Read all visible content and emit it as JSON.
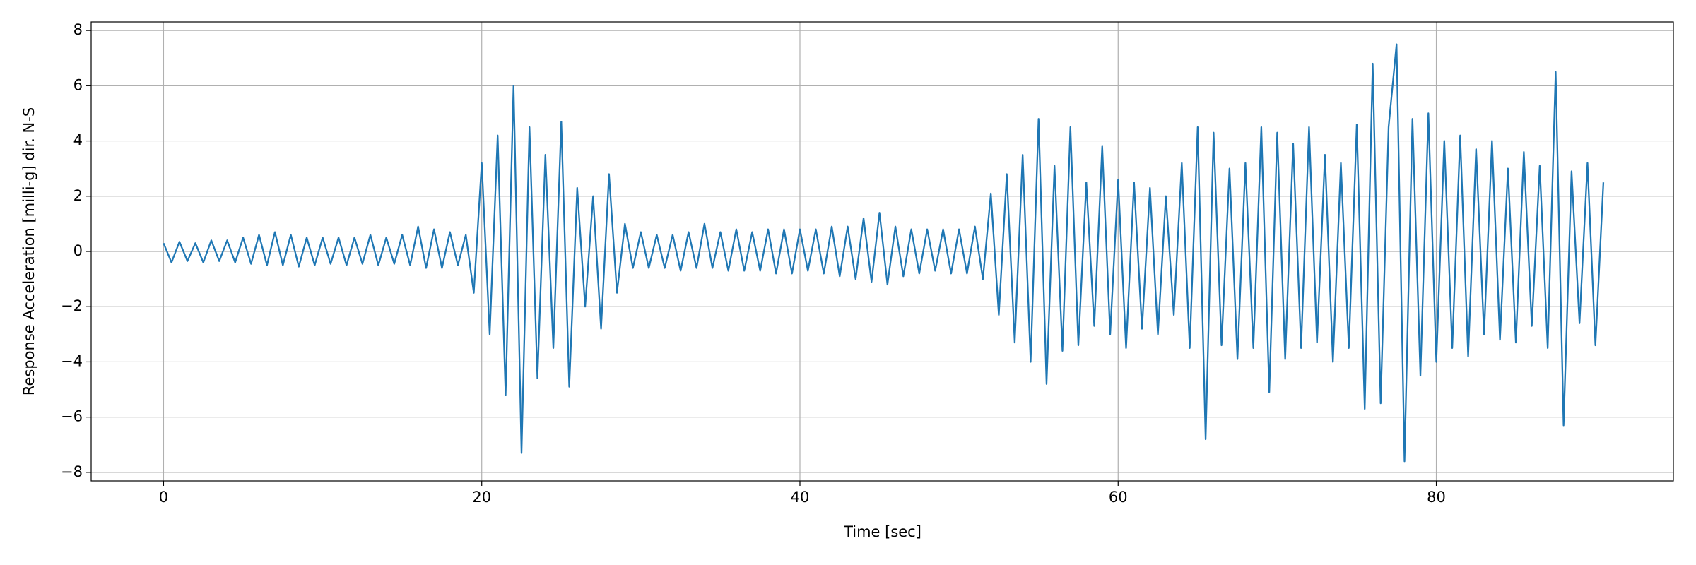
{
  "chart_data": {
    "type": "line",
    "xlabel": "Time [sec]",
    "ylabel": "Response Acceleration [milli-g] dir. N-S",
    "xlim": [
      -4.55,
      94.9
    ],
    "ylim": [
      -8.31,
      8.31
    ],
    "xticks": [
      0,
      20,
      40,
      60,
      80
    ],
    "yticks": [
      {
        "value": -8,
        "label": "−8"
      },
      {
        "value": -6,
        "label": "−6"
      },
      {
        "value": -4,
        "label": "−4"
      },
      {
        "value": -2,
        "label": "−2"
      },
      0,
      2,
      4,
      6,
      8
    ],
    "grid": true,
    "x": [
      0,
      0.5,
      1,
      1.5,
      2,
      2.5,
      3,
      3.5,
      4,
      4.5,
      5,
      5.5,
      6,
      6.5,
      7,
      7.5,
      8,
      8.5,
      9,
      9.5,
      10,
      10.5,
      11,
      11.5,
      12,
      12.5,
      13,
      13.5,
      14,
      14.5,
      15,
      15.5,
      16,
      16.5,
      17,
      17.5,
      18,
      18.5,
      19,
      19.5,
      20,
      20.5,
      21,
      21.5,
      22,
      22.5,
      23,
      23.5,
      24,
      24.5,
      25,
      25.5,
      26,
      26.5,
      27,
      27.5,
      28,
      28.5,
      29,
      29.5,
      30,
      30.5,
      31,
      31.5,
      32,
      32.5,
      33,
      33.5,
      34,
      34.5,
      35,
      35.5,
      36,
      36.5,
      37,
      37.5,
      38,
      38.5,
      39,
      39.5,
      40,
      40.5,
      41,
      41.5,
      42,
      42.5,
      43,
      43.5,
      44,
      44.5,
      45,
      45.5,
      46,
      46.5,
      47,
      47.5,
      48,
      48.5,
      49,
      49.5,
      50,
      50.5,
      51,
      51.5,
      52,
      52.5,
      53,
      53.5,
      54,
      54.5,
      55,
      55.5,
      56,
      56.5,
      57,
      57.5,
      58,
      58.5,
      59,
      59.5,
      60,
      60.5,
      61,
      61.5,
      62,
      62.5,
      63,
      63.5,
      64,
      64.5,
      65,
      65.5,
      66,
      66.5,
      67,
      67.5,
      68,
      68.5,
      69,
      69.5,
      70,
      70.5,
      71,
      71.5,
      72,
      72.5,
      73,
      73.5,
      74,
      74.5,
      75,
      75.5,
      76,
      76.5,
      77,
      77.5,
      78,
      78.5,
      79,
      79.5,
      80,
      80.5,
      81,
      81.5,
      82,
      82.5,
      83,
      83.5,
      84,
      84.5,
      85,
      85.5,
      86,
      86.5,
      87,
      87.5,
      88,
      88.5,
      89,
      89.5,
      90,
      90.5
    ],
    "series": [
      {
        "color": "#1f77b4",
        "values": [
          0.3,
          -0.4,
          0.35,
          -0.35,
          0.3,
          -0.4,
          0.4,
          -0.35,
          0.4,
          -0.4,
          0.5,
          -0.45,
          0.6,
          -0.5,
          0.7,
          -0.5,
          0.6,
          -0.55,
          0.5,
          -0.5,
          0.5,
          -0.45,
          0.5,
          -0.5,
          0.5,
          -0.45,
          0.6,
          -0.5,
          0.5,
          -0.45,
          0.6,
          -0.5,
          0.9,
          -0.6,
          0.8,
          -0.6,
          0.7,
          -0.5,
          0.6,
          -1.5,
          3.2,
          -3.0,
          4.2,
          -5.2,
          6.0,
          -7.3,
          4.5,
          -4.6,
          3.5,
          -3.5,
          4.7,
          -4.9,
          2.3,
          -2.0,
          2.0,
          -2.8,
          2.8,
          -1.5,
          1.0,
          -0.6,
          0.7,
          -0.6,
          0.6,
          -0.6,
          0.6,
          -0.7,
          0.7,
          -0.6,
          1.0,
          -0.6,
          0.7,
          -0.7,
          0.8,
          -0.7,
          0.7,
          -0.7,
          0.8,
          -0.8,
          0.8,
          -0.8,
          0.8,
          -0.7,
          0.8,
          -0.8,
          0.9,
          -0.9,
          0.9,
          -1.0,
          1.2,
          -1.1,
          1.4,
          -1.2,
          0.9,
          -0.9,
          0.8,
          -0.8,
          0.8,
          -0.7,
          0.8,
          -0.8,
          0.8,
          -0.8,
          0.9,
          -1.0,
          2.1,
          -2.3,
          2.8,
          -3.3,
          3.5,
          -4.0,
          4.8,
          -4.8,
          3.1,
          -3.6,
          4.5,
          -3.4,
          2.5,
          -2.7,
          3.8,
          -3.0,
          2.6,
          -3.5,
          2.5,
          -2.8,
          2.3,
          -3.0,
          2.0,
          -2.3,
          3.2,
          -3.5,
          4.5,
          -6.8,
          4.3,
          -3.4,
          3.0,
          -3.9,
          3.2,
          -3.5,
          4.5,
          -5.1,
          4.3,
          -3.9,
          3.9,
          -3.5,
          4.5,
          -3.3,
          3.5,
          -4.0,
          3.2,
          -3.5,
          4.6,
          -5.7,
          6.8,
          -5.5,
          4.5,
          7.5,
          -7.6,
          4.8,
          -4.5,
          5.0,
          -4.0,
          4.0,
          -3.5,
          4.2,
          -3.8,
          3.7,
          -3.0,
          4.0,
          -3.2,
          3.0,
          -3.3,
          3.6,
          -2.7,
          3.1,
          -3.5,
          6.5,
          -6.3,
          2.9,
          -2.6,
          3.2,
          -3.4,
          2.5
        ]
      }
    ]
  }
}
